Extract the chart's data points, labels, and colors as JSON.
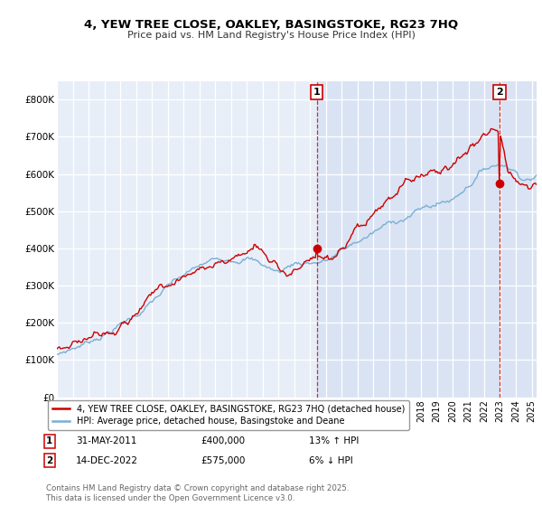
{
  "title": "4, YEW TREE CLOSE, OAKLEY, BASINGSTOKE, RG23 7HQ",
  "subtitle": "Price paid vs. HM Land Registry's House Price Index (HPI)",
  "legend_label1": "4, YEW TREE CLOSE, OAKLEY, BASINGSTOKE, RG23 7HQ (detached house)",
  "legend_label2": "HPI: Average price, detached house, Basingstoke and Deane",
  "annotation1_date": "31-MAY-2011",
  "annotation1_price": "£400,000",
  "annotation1_hpi": "13% ↑ HPI",
  "annotation2_date": "14-DEC-2022",
  "annotation2_price": "£575,000",
  "annotation2_hpi": "6% ↓ HPI",
  "footer": "Contains HM Land Registry data © Crown copyright and database right 2025.\nThis data is licensed under the Open Government Licence v3.0.",
  "house_color": "#cc0000",
  "hpi_color": "#7aafd4",
  "background_color": "#e8eef8",
  "shade_color": "#d0dcf0",
  "vline_color": "#cc0000",
  "ylim": [
    0,
    850000
  ],
  "sale1_year": 2011.42,
  "sale1_price": 400000,
  "sale2_year": 2022.96,
  "sale2_price": 575000,
  "xstart": 1995,
  "xend": 2025.3
}
